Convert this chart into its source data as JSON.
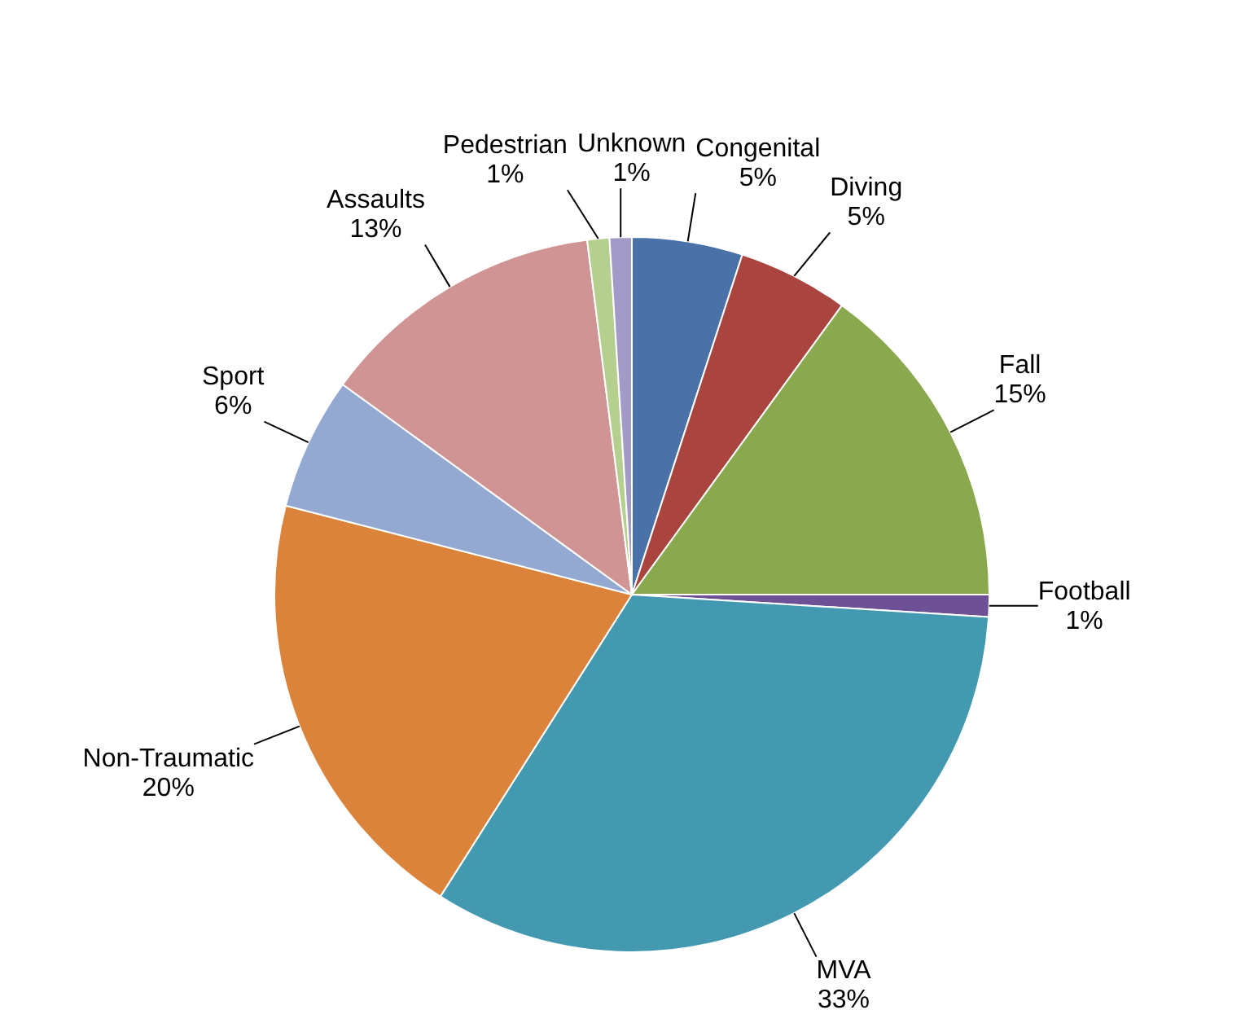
{
  "chart_data": {
    "type": "pie",
    "categories": [
      "Congenital",
      "Diving",
      "Fall",
      "Football",
      "MVA",
      "Non-Traumatic",
      "Sport",
      "Assaults",
      "Pedestrian",
      "Unknown"
    ],
    "values": [
      5,
      5,
      15,
      1,
      33,
      20,
      6,
      13,
      1,
      1
    ],
    "value_labels": [
      "5%",
      "5%",
      "15%",
      "1%",
      "33%",
      "20%",
      "6%",
      "13%",
      "1%",
      "1%"
    ],
    "colors": [
      "#4a72a8",
      "#a9443f",
      "#8aa84e",
      "#6e5096",
      "#4299b0",
      "#db833a",
      "#93a9d1",
      "#d09494",
      "#b5cf8e",
      "#a39bc7"
    ],
    "legend": false
  }
}
